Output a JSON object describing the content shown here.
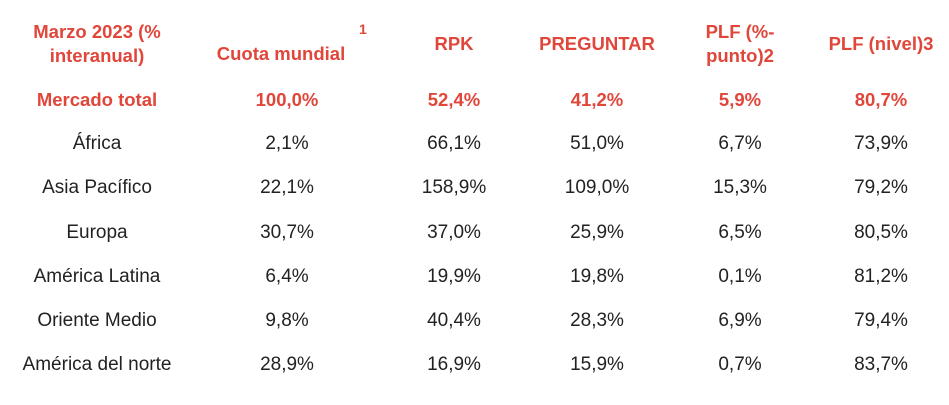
{
  "headers": {
    "col0_line1": "Marzo 2023 (%",
    "col0_line2": "interanual)",
    "col1": "Cuota mundial",
    "col1_sup": "1",
    "col2": "RPK",
    "col3": "PREGUNTAR",
    "col4_line1": "PLF (%-",
    "col4_line2": "punto)2",
    "col5": "PLF (nivel)3"
  },
  "rows": [
    [
      "Mercado total",
      "100,0%",
      "52,4%",
      "41,2%",
      "5,9%",
      "80,7%"
    ],
    [
      "África",
      "2,1%",
      "66,1%",
      "51,0%",
      "6,7%",
      "73,9%"
    ],
    [
      "Asia Pacífico",
      "22,1%",
      "158,9%",
      "109,0%",
      "15,3%",
      "79,2%"
    ],
    [
      "Europa",
      "30,7%",
      "37,0%",
      "25,9%",
      "6,5%",
      "80,5%"
    ],
    [
      "América Latina",
      "6,4%",
      "19,9%",
      "19,8%",
      "0,1%",
      "81,2%"
    ],
    [
      "Oriente Medio",
      "9,8%",
      "40,4%",
      "28,3%",
      "6,9%",
      "79,4%"
    ],
    [
      "América del norte",
      "28,9%",
      "16,9%",
      "15,9%",
      "0,7%",
      "83,7%"
    ]
  ],
  "colors": {
    "accent": "#e0463a",
    "text": "#222222"
  }
}
